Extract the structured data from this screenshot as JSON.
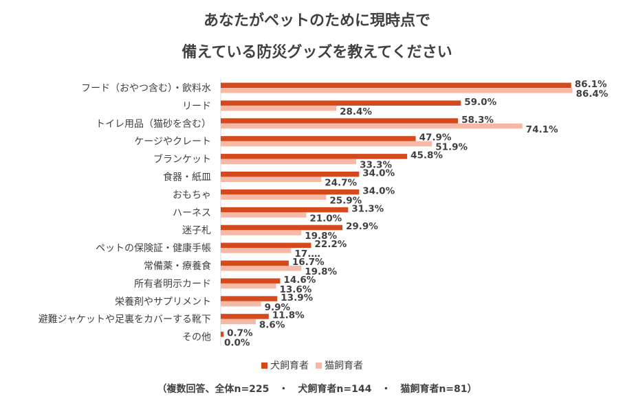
{
  "chart_data": {
    "type": "bar",
    "orientation": "horizontal",
    "title_lines": [
      "あなたがペットのために現時点で",
      "備えている防災グッズを教えてください"
    ],
    "categories": [
      "フード（おやつ含む）・飲料水",
      "リード",
      "トイレ用品（猫砂を含む）",
      "ケージやクレート",
      "ブランケット",
      "食器・紙皿",
      "おもちゃ",
      "ハーネス",
      "迷子札",
      "ペットの保険証・健康手帳",
      "常備薬・療養食",
      "所有者明示カード",
      "栄養剤やサプリメント",
      "避難ジャケットや足裏をカバーする靴下",
      "その他"
    ],
    "series": [
      {
        "name": "犬飼育者",
        "color": "#d54a1c",
        "values": [
          86.1,
          59.0,
          58.3,
          47.9,
          45.8,
          34.0,
          34.0,
          31.3,
          29.9,
          22.2,
          16.7,
          14.6,
          13.9,
          11.8,
          0.7
        ],
        "labels": [
          "86.1%",
          "59.0%",
          "58.3%",
          "47.9%",
          "45.8%",
          "34.0%",
          "34.0%",
          "31.3%",
          "29.9%",
          "22.2%",
          "16.7%",
          "14.6%",
          "13.9%",
          "11.8%",
          "0.7%"
        ]
      },
      {
        "name": "猫飼育者",
        "color": "#f6b9a6",
        "values": [
          86.4,
          28.4,
          74.1,
          51.9,
          33.3,
          24.7,
          25.9,
          21.0,
          19.8,
          17.3,
          19.8,
          13.6,
          9.9,
          8.6,
          0.0
        ],
        "labels": [
          "86.4%",
          "28.4%",
          "74.1%",
          "51.9%",
          "33.3%",
          "24.7%",
          "25.9%",
          "21.0%",
          "19.8%",
          "17.…",
          "19.8%",
          "13.6%",
          "9.9%",
          "8.6%",
          "0.0%"
        ]
      }
    ],
    "xlim": [
      0,
      100
    ],
    "grid": false,
    "legend": "bottom"
  },
  "footnote": "（複数回答、全体n=225　・　犬飼育者n=144　・　猫飼育者n=81）"
}
